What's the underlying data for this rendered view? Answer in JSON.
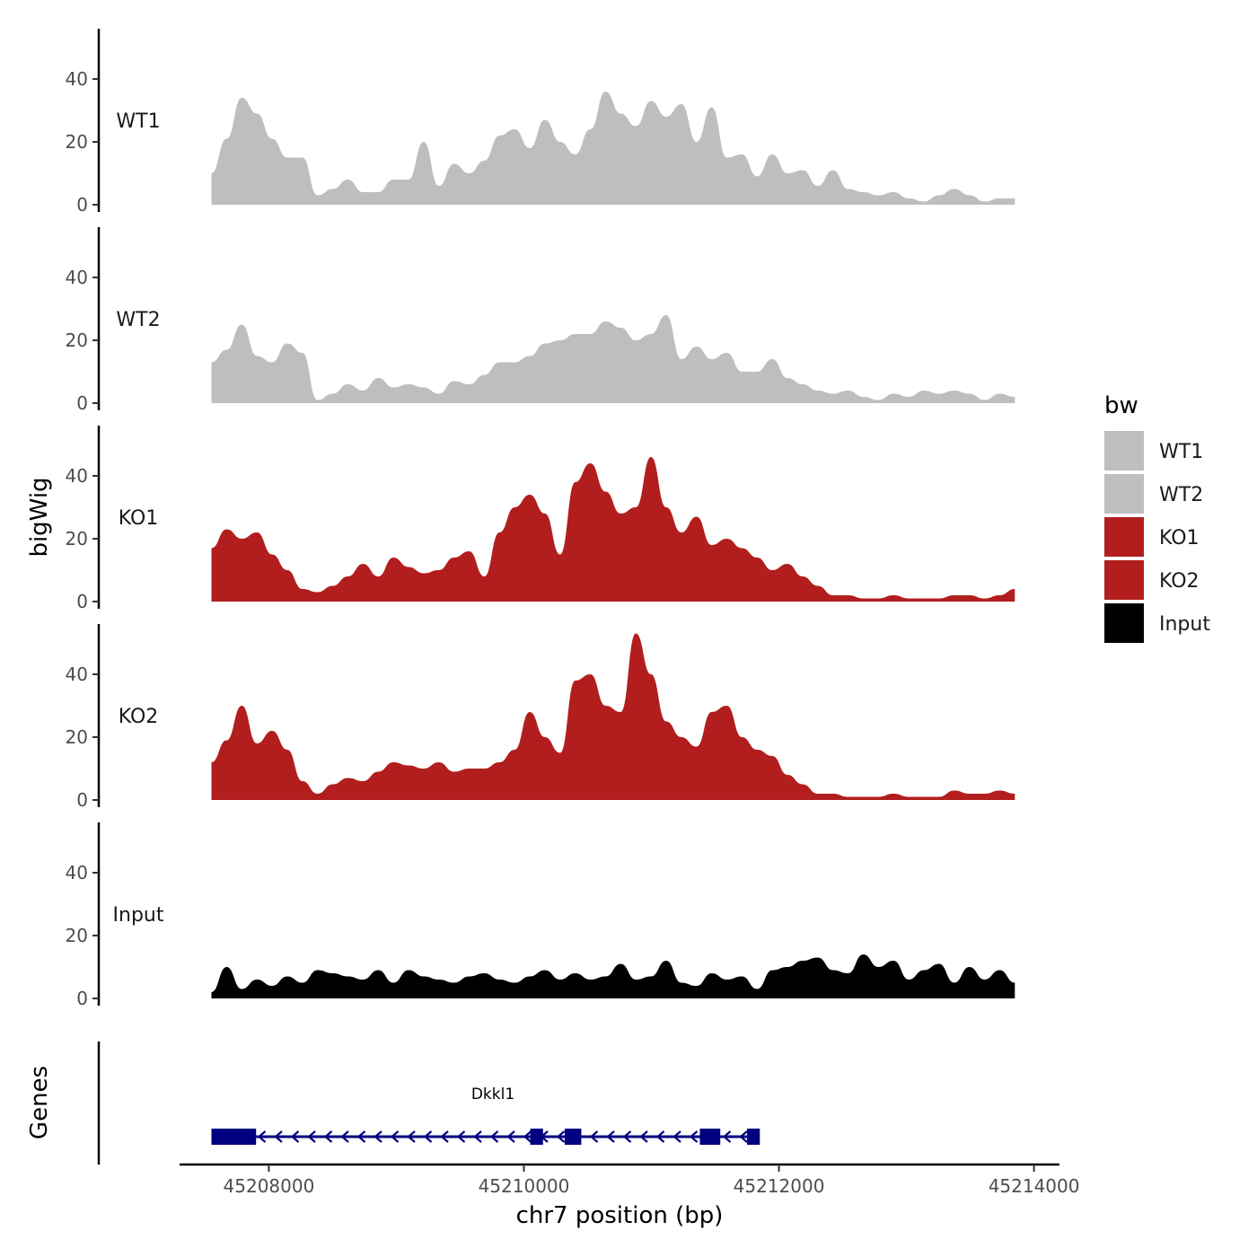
{
  "chart_data": {
    "type": "area",
    "ylabel": "bigWig",
    "xlabel": "chr7 position (bp)",
    "genes_label": "Genes",
    "xlim": [
      45207300,
      45214200
    ],
    "x_ticks": [
      45208000,
      45210000,
      45212000,
      45214000
    ],
    "x_tick_labels": [
      "45208000",
      "45210000",
      "45212000",
      "45214000"
    ],
    "ylim": [
      0,
      56
    ],
    "y_ticks": [
      0,
      20,
      40
    ],
    "y_tick_labels": [
      "0",
      "20",
      "40"
    ],
    "x_start": 45207550,
    "x_end": 45213850,
    "legend": {
      "title": "bw",
      "entries": [
        "WT1",
        "WT2",
        "KO1",
        "KO2",
        "Input"
      ]
    },
    "series": [
      {
        "name": "WT1",
        "label": "WT1",
        "color": "#bebebe",
        "values": [
          10,
          21,
          34,
          29,
          21,
          15,
          15,
          3,
          5,
          8,
          4,
          4,
          8,
          8,
          20,
          6,
          13,
          10,
          14,
          22,
          24,
          18,
          27,
          20,
          16,
          24,
          36,
          29,
          25,
          33,
          28,
          32,
          20,
          31,
          15,
          16,
          9,
          16,
          10,
          11,
          6,
          11,
          5,
          4,
          3,
          4,
          2,
          1,
          3,
          5,
          3,
          1,
          2,
          2
        ]
      },
      {
        "name": "WT2",
        "label": "WT2",
        "color": "#bebebe",
        "values": [
          13,
          17,
          25,
          15,
          13,
          19,
          16,
          1,
          3,
          6,
          4,
          8,
          5,
          6,
          5,
          3,
          7,
          6,
          9,
          13,
          13,
          15,
          19,
          20,
          22,
          22,
          26,
          24,
          20,
          22,
          28,
          14,
          18,
          14,
          16,
          10,
          10,
          14,
          8,
          6,
          4,
          3,
          4,
          2,
          1,
          3,
          2,
          4,
          3,
          4,
          3,
          1,
          3,
          2
        ]
      },
      {
        "name": "KO1",
        "label": "KO1",
        "color": "#b21e1e",
        "values": [
          17,
          23,
          20,
          22,
          15,
          10,
          4,
          3,
          5,
          8,
          12,
          8,
          14,
          11,
          9,
          10,
          14,
          16,
          8,
          22,
          30,
          34,
          28,
          15,
          38,
          44,
          35,
          28,
          30,
          46,
          30,
          22,
          27,
          18,
          20,
          17,
          14,
          10,
          12,
          8,
          5,
          2,
          2,
          1,
          1,
          2,
          1,
          1,
          1,
          2,
          2,
          1,
          2,
          4
        ]
      },
      {
        "name": "KO2",
        "label": "KO2",
        "color": "#b21e1e",
        "values": [
          12,
          19,
          30,
          18,
          22,
          16,
          6,
          2,
          5,
          7,
          6,
          9,
          12,
          11,
          10,
          12,
          9,
          10,
          10,
          12,
          16,
          28,
          20,
          15,
          38,
          40,
          30,
          28,
          53,
          40,
          25,
          20,
          17,
          28,
          30,
          20,
          16,
          14,
          8,
          5,
          2,
          2,
          1,
          1,
          1,
          2,
          1,
          1,
          1,
          3,
          2,
          2,
          3,
          2
        ]
      },
      {
        "name": "Input",
        "label": "Input",
        "color": "#000000",
        "values": [
          2,
          10,
          3,
          6,
          4,
          7,
          5,
          9,
          8,
          7,
          6,
          9,
          5,
          9,
          7,
          6,
          5,
          7,
          8,
          6,
          5,
          7,
          9,
          6,
          8,
          6,
          7,
          11,
          6,
          7,
          12,
          5,
          4,
          8,
          6,
          7,
          3,
          9,
          10,
          12,
          13,
          9,
          8,
          14,
          10,
          12,
          6,
          9,
          11,
          5,
          10,
          6,
          9,
          5
        ]
      }
    ],
    "gene": {
      "name": "Dkkl1",
      "color": "#000080",
      "start": 45207550,
      "end": 45211850,
      "strand": "-",
      "exons": [
        [
          45207550,
          45207900
        ],
        [
          45210050,
          45210150
        ],
        [
          45210320,
          45210450
        ],
        [
          45211380,
          45211540
        ],
        [
          45211750,
          45211850
        ]
      ]
    }
  }
}
